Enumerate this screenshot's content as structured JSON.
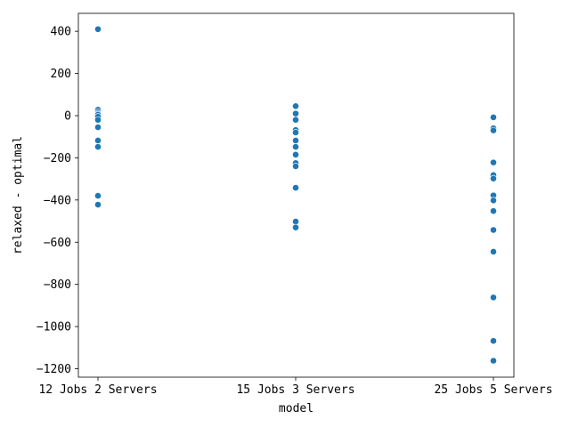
{
  "chart_data": {
    "type": "scatter",
    "title": "",
    "xlabel": "model",
    "ylabel": "relaxed - optimal",
    "categories": [
      "12 Jobs 2 Servers",
      "15 Jobs 3 Servers",
      "25 Jobs 5 Servers"
    ],
    "ylim": [
      -1240,
      485
    ],
    "yticks": [
      400,
      200,
      0,
      -200,
      -400,
      -600,
      -800,
      -1000,
      -1200
    ],
    "ytick_labels": [
      "400",
      "200",
      "0",
      "−200",
      "−400",
      "−600",
      "−800",
      "−1000",
      "−1200"
    ],
    "grid": false,
    "legend": "none",
    "marker_color": "#1f77b4",
    "series": [
      {
        "category": "12 Jobs 2 Servers",
        "values": [
          410,
          28,
          18,
          10,
          5,
          -5,
          -20,
          -55,
          -118,
          -148,
          -380,
          -422
        ]
      },
      {
        "category": "15 Jobs 3 Servers",
        "values": [
          45,
          10,
          -20,
          -68,
          -80,
          -118,
          -148,
          -185,
          -225,
          -240,
          -342,
          -502,
          -530
        ]
      },
      {
        "category": "25 Jobs 5 Servers",
        "values": [
          -8,
          -60,
          -70,
          -222,
          -282,
          -298,
          -378,
          -402,
          -452,
          -542,
          -645,
          -862,
          -1068,
          -1162
        ]
      }
    ]
  }
}
